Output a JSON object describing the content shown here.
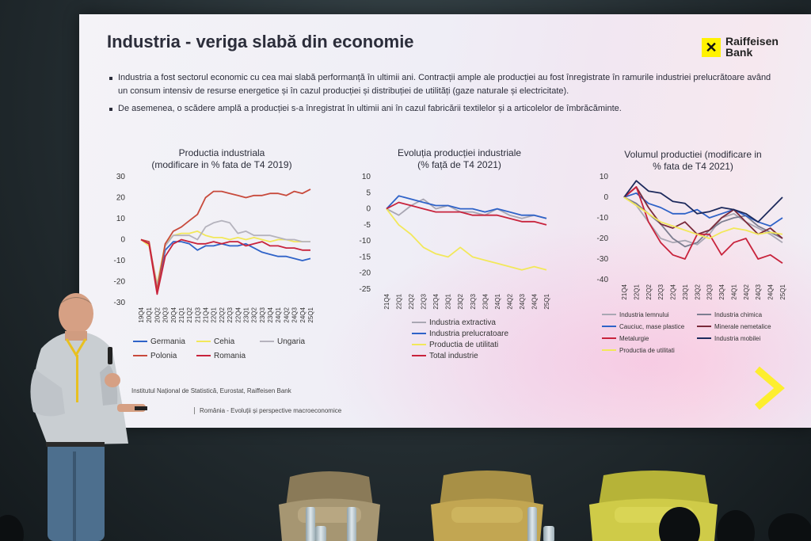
{
  "slide": {
    "title": "Industria - veriga slabă din economie",
    "logo_line1": "Raiffeisen",
    "logo_line2": "Bank",
    "bullets": [
      "Industria a fost sectorul economic cu cea mai slabă performanță în ultimii ani. Contracții ample ale producției au fost înregistrate în ramurile industriei prelucrătoare având un consum intensiv de resurse energetice și în cazul producției și distribuției de utilități (gaze naturale și electricitate).",
      "De asemenea, o scădere amplă a producției s-a înregistrat în ultimii ani în cazul fabricării textilelor și a articolelor de îmbrăcăminte."
    ],
    "source": "Institutul Național de Statistică, Eurostat, Raiffeisen Bank",
    "footer": "România - Evoluții și perspective macroeconomice"
  },
  "colors": {
    "slide_bg": "#f3f2f7",
    "title": "#2b2d3a",
    "accent_yellow": "#fff200"
  },
  "chart_data": [
    {
      "type": "line",
      "title_line1": "Productia industriala",
      "title_line2": "(modificare in % fata de T4 2019)",
      "categories": [
        "19Q4",
        "20Q1",
        "20Q2",
        "20Q3",
        "20Q4",
        "21Q1",
        "21Q2",
        "21Q3",
        "21Q4",
        "22Q1",
        "22Q2",
        "22Q3",
        "22Q4",
        "23Q1",
        "23Q2",
        "23Q3",
        "23Q4",
        "24Q1",
        "24Q2",
        "24Q3",
        "24Q4",
        "25Q1"
      ],
      "ylim": [
        -30,
        30
      ],
      "yticks": [
        30,
        20,
        10,
        0,
        -10,
        -20,
        -30
      ],
      "series": [
        {
          "name": "Germania",
          "color": "#2f63c8",
          "values": [
            0,
            -2,
            -23,
            -5,
            -1,
            -1,
            -2,
            -5,
            -3,
            -3,
            -2,
            -3,
            -3,
            -2,
            -4,
            -6,
            -7,
            -8,
            -8,
            -9,
            -10,
            -9
          ]
        },
        {
          "name": "Cehia",
          "color": "#f2e85a",
          "values": [
            0,
            -3,
            -21,
            -2,
            2,
            3,
            3,
            4,
            2,
            1,
            1,
            0,
            1,
            0,
            1,
            0,
            -1,
            0,
            0,
            -1,
            -1,
            -1
          ]
        },
        {
          "name": "Ungaria",
          "color": "#b5b3bd",
          "values": [
            0,
            -2,
            -22,
            -3,
            2,
            2,
            2,
            0,
            6,
            8,
            9,
            8,
            3,
            4,
            2,
            2,
            2,
            1,
            0,
            0,
            -1,
            -1
          ]
        },
        {
          "name": "Polonia",
          "color": "#c84a3c",
          "values": [
            0,
            -1,
            -24,
            -2,
            4,
            6,
            9,
            12,
            20,
            23,
            23,
            22,
            21,
            20,
            21,
            21,
            22,
            22,
            21,
            23,
            22,
            24
          ]
        },
        {
          "name": "Romania",
          "color": "#c8233c",
          "values": [
            0,
            -2,
            -26,
            -8,
            -2,
            0,
            -1,
            -2,
            -2,
            -1,
            -2,
            -1,
            -1,
            -3,
            -2,
            -1,
            -3,
            -3,
            -4,
            -4,
            -5,
            -5
          ]
        }
      ]
    },
    {
      "type": "line",
      "title_line1": "Evoluția producției industriale",
      "title_line2": "(% față de T4 2021)",
      "categories": [
        "21Q4",
        "22Q1",
        "22Q2",
        "22Q3",
        "22Q4",
        "23Q1",
        "23Q2",
        "23Q3",
        "23Q4",
        "24Q1",
        "24Q2",
        "24Q3",
        "24Q4",
        "25Q1"
      ],
      "ylim": [
        -25,
        10
      ],
      "yticks": [
        10,
        5,
        0,
        -5,
        -10,
        -15,
        -20,
        -25
      ],
      "series": [
        {
          "name": "Industria extractiva",
          "color": "#a9a7b3",
          "values": [
            0,
            -2,
            1,
            3,
            0,
            1,
            -1,
            -1,
            -2,
            0,
            -2,
            -3,
            -2,
            -3
          ]
        },
        {
          "name": "Industria prelucratoare",
          "color": "#2f63c8",
          "values": [
            0,
            4,
            3,
            2,
            1,
            1,
            0,
            0,
            -1,
            0,
            -1,
            -2,
            -2,
            -3
          ]
        },
        {
          "name": "Productia de utilitati",
          "color": "#f2e85a",
          "values": [
            0,
            -5,
            -8,
            -12,
            -14,
            -15,
            -12,
            -15,
            -16,
            -17,
            -18,
            -19,
            -18,
            -19
          ]
        },
        {
          "name": "Total industrie",
          "color": "#c8233c",
          "values": [
            0,
            2,
            1,
            0,
            -1,
            -1,
            -1,
            -2,
            -2,
            -2,
            -3,
            -4,
            -4,
            -5
          ]
        }
      ]
    },
    {
      "type": "line",
      "title_line1": "Volumul productiei (modificare in",
      "title_line2": "% fata de T4 2021)",
      "categories": [
        "21Q4",
        "22Q1",
        "22Q2",
        "22Q3",
        "22Q4",
        "23Q1",
        "23Q2",
        "23Q3",
        "23Q4",
        "24Q1",
        "24Q2",
        "24Q3",
        "24Q4",
        "25Q1"
      ],
      "ylim": [
        -40,
        10
      ],
      "yticks": [
        10,
        0,
        -10,
        -20,
        -30,
        -40
      ],
      "series": [
        {
          "name": "Industria lemnului",
          "color": "#a9a7b3",
          "values": [
            0,
            -4,
            -12,
            -20,
            -22,
            -21,
            -23,
            -18,
            -10,
            -8,
            -12,
            -15,
            -18,
            -22
          ]
        },
        {
          "name": "Industria chimica",
          "color": "#7d7e90",
          "values": [
            0,
            -3,
            -8,
            -13,
            -20,
            -24,
            -22,
            -16,
            -12,
            -10,
            -9,
            -14,
            -17,
            -20
          ]
        },
        {
          "name": "Cauciuc, mase plastice",
          "color": "#2f63c8",
          "values": [
            0,
            2,
            -3,
            -5,
            -8,
            -8,
            -6,
            -10,
            -8,
            -6,
            -9,
            -12,
            -14,
            -10
          ]
        },
        {
          "name": "Minerale nemetalice",
          "color": "#7a2a3a",
          "values": [
            0,
            5,
            -5,
            -13,
            -15,
            -12,
            -18,
            -16,
            -10,
            -6,
            -12,
            -18,
            -15,
            -20
          ]
        },
        {
          "name": "Metalurgie",
          "color": "#c8233c",
          "values": [
            0,
            5,
            -12,
            -22,
            -28,
            -30,
            -18,
            -18,
            -28,
            -22,
            -20,
            -30,
            -28,
            -32
          ]
        },
        {
          "name": "Industria mobilei",
          "color": "#1d2a5c",
          "values": [
            0,
            8,
            3,
            2,
            -2,
            -3,
            -8,
            -7,
            -5,
            -6,
            -8,
            -12,
            -6,
            0
          ]
        },
        {
          "name": "Productia de utilitati",
          "color": "#f2e85a",
          "values": [
            0,
            -4,
            -8,
            -12,
            -14,
            -16,
            -18,
            -20,
            -17,
            -15,
            -16,
            -18,
            -17,
            -18
          ]
        }
      ]
    }
  ]
}
